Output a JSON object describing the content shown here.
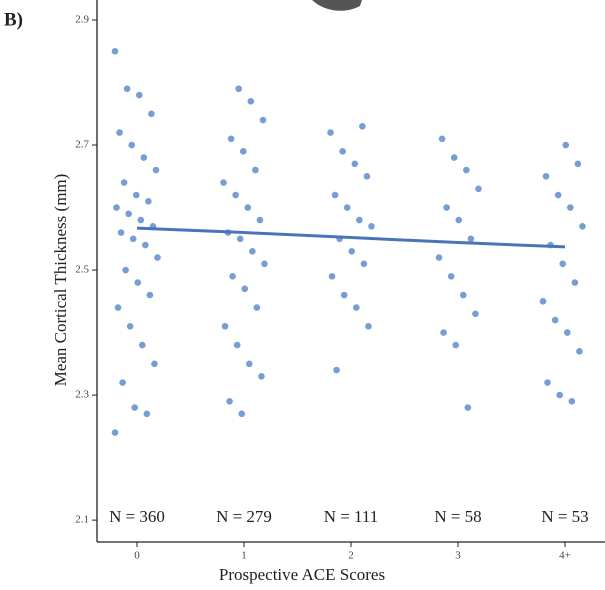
{
  "panel_label": "B)",
  "chart_data": {
    "type": "strip",
    "x_label": "Prospective ACE Scores",
    "y_label": "Mean Cortical Thickness (mm)",
    "categories": [
      "0",
      "1",
      "2",
      "3",
      "4+"
    ],
    "color": "#4a7cc7",
    "trend_color": "#4a74b8",
    "points": [
      [
        2.85,
        2.79,
        2.78,
        2.75,
        2.72,
        2.7,
        2.68,
        2.66,
        2.64,
        2.62,
        2.61,
        2.6,
        2.59,
        2.58,
        2.57,
        2.56,
        2.55,
        2.54,
        2.52,
        2.5,
        2.48,
        2.46,
        2.44,
        2.41,
        2.38,
        2.35,
        2.32,
        2.28,
        2.27,
        2.24
      ],
      [
        2.79,
        2.77,
        2.74,
        2.71,
        2.69,
        2.66,
        2.64,
        2.62,
        2.6,
        2.58,
        2.56,
        2.55,
        2.53,
        2.51,
        2.49,
        2.47,
        2.44,
        2.41,
        2.38,
        2.35,
        2.33,
        2.29,
        2.27
      ],
      [
        2.73,
        2.72,
        2.69,
        2.67,
        2.65,
        2.62,
        2.6,
        2.58,
        2.57,
        2.55,
        2.53,
        2.51,
        2.49,
        2.46,
        2.44,
        2.41,
        2.34
      ],
      [
        2.71,
        2.68,
        2.66,
        2.63,
        2.6,
        2.58,
        2.55,
        2.52,
        2.49,
        2.46,
        2.43,
        2.4,
        2.38,
        2.28
      ],
      [
        2.7,
        2.67,
        2.65,
        2.62,
        2.6,
        2.57,
        2.54,
        2.51,
        2.48,
        2.45,
        2.42,
        2.4,
        2.37,
        2.32,
        2.3,
        2.29
      ]
    ],
    "trend": [
      2.567,
      2.56,
      2.552,
      2.544,
      2.537
    ],
    "n_labels": [
      "N = 360",
      "N = 279",
      "N = 111",
      "N = 58",
      "N = 53"
    ],
    "ylim": [
      2.065,
      2.932
    ],
    "yticks": [
      2.1,
      2.3,
      2.5,
      2.7,
      2.9
    ]
  }
}
